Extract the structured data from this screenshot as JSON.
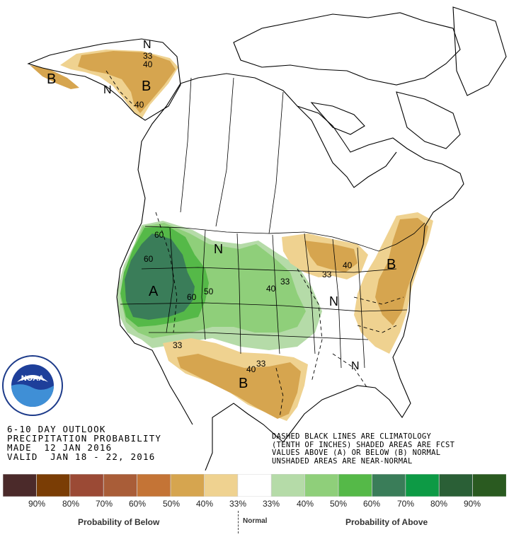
{
  "title_lines": [
    "6-10 DAY OUTLOOK",
    "PRECIPITATION PROBABILITY",
    "MADE  12 JAN 2016",
    "VALID  JAN 18 - 22, 2016"
  ],
  "legend_note_lines": [
    "DASHED BLACK LINES ARE CLIMATOLOGY",
    "(TENTH OF INCHES) SHADED AREAS ARE FCST",
    "VALUES ABOVE (A) OR BELOW (B) NORMAL",
    "UNSHADED AREAS ARE NEAR-NORMAL"
  ],
  "logo": {
    "text": "NOAA",
    "ring_text": "NATIONAL OCEANIC AND ATMOSPHERIC ADMINISTRATION",
    "ring_text_bottom": "U.S. DEPARTMENT OF COMMERCE"
  },
  "map_labels": {
    "region_letters": [
      {
        "id": "alaska-west-b",
        "text": "B"
      },
      {
        "id": "alaska-north-n",
        "text": "N"
      },
      {
        "id": "alaska-mid-n",
        "text": "N"
      },
      {
        "id": "alaska-east-b",
        "text": "B"
      },
      {
        "id": "west-a",
        "text": "A"
      },
      {
        "id": "north-central-n",
        "text": "N"
      },
      {
        "id": "ohio-valley-n",
        "text": "N"
      },
      {
        "id": "northeast-b",
        "text": "B"
      },
      {
        "id": "texas-b",
        "text": "B"
      },
      {
        "id": "southeast-n",
        "text": "N"
      }
    ],
    "contour_values": [
      {
        "id": "ak-33",
        "text": "33"
      },
      {
        "id": "ak-40",
        "text": "40"
      },
      {
        "id": "ak-40b",
        "text": "40"
      },
      {
        "id": "nw-60",
        "text": "60"
      },
      {
        "id": "nw-60b",
        "text": "60"
      },
      {
        "id": "w-60",
        "text": "60"
      },
      {
        "id": "w-50",
        "text": "50"
      },
      {
        "id": "plains-40",
        "text": "40"
      },
      {
        "id": "plains-33",
        "text": "33"
      },
      {
        "id": "lakes-33",
        "text": "33"
      },
      {
        "id": "lakes-40",
        "text": "40"
      },
      {
        "id": "sw-33",
        "text": "33"
      },
      {
        "id": "tx-40",
        "text": "40"
      },
      {
        "id": "tx-33",
        "text": "33"
      }
    ]
  },
  "colorbar": {
    "colors": [
      "#4b2a2a",
      "#7a3d05",
      "#9b4a35",
      "#a95d38",
      "#c47436",
      "#d6a54f",
      "#efd290",
      "#ffffff",
      "#b5dba8",
      "#8fcf7a",
      "#55b948",
      "#3a7d59",
      "#0d9a45",
      "#2a5f36",
      "#2a5a20"
    ],
    "labels": [
      "90%",
      "80%",
      "70%",
      "60%",
      "50%",
      "40%",
      "33%",
      "33%",
      "40%",
      "50%",
      "60%",
      "70%",
      "80%",
      "90%"
    ],
    "below_label": "Probability of Below",
    "normal_label": "Normal",
    "above_label": "Probability of Above"
  },
  "map_colors": {
    "below_33": "#efd290",
    "below_40": "#d6a54f",
    "above_33": "#b5dba8",
    "above_40": "#8fcf7a",
    "above_50": "#55b948",
    "above_60": "#3a7d59"
  }
}
